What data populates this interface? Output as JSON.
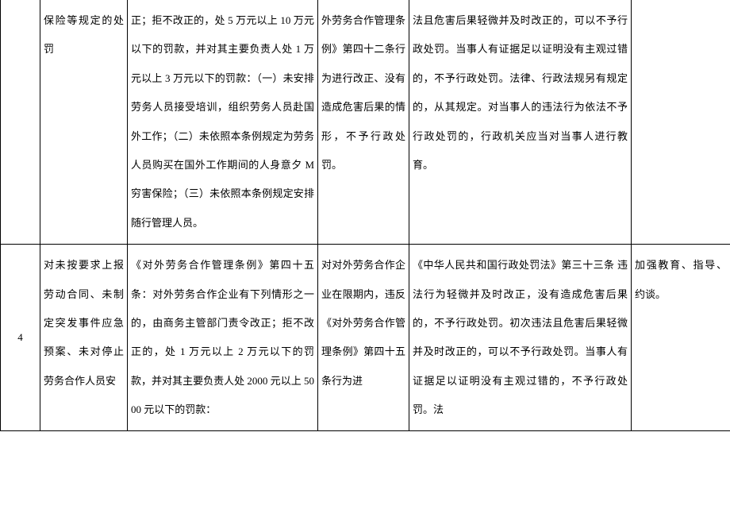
{
  "row1": {
    "c1": "",
    "c2": "保险等规定的处罚",
    "c3": "正；拒不改正的，处 5 万元以上 10 万元以下的罚款，并对其主要负责人处 1 万元以上 3 万元以下的罚款：（一）未安排劳务人员接受培训，组织劳务人员赴国外工作；（二）未依照本条例规定为劳务人员购买在国外工作期间的人身意夕 M 穷害保险；（三）未依照本条例规定安排随行管理人员。",
    "c4": "外劳务合作管理条例》第四十二条行为进行改正、没有造成危害后果的情形，不予行政处罚。",
    "c5": "法且危害后果轻微并及时改正的，可以不予行政处罚。当事人有证据足以证明没有主观过错的，不予行政处罚。法律、行政法规另有规定的，从其规定。对当事人的违法行为依法不予行政处罚的，行政机关应当对当事人进行教育。",
    "c6": ""
  },
  "row2": {
    "c1": "4",
    "c2": "对未按要求上报劳动合同、未制定突发事件应急预案、未对停止劳务合作人员安",
    "c3": "《对外劳务合作管理条例》第四十五条：对外劳务合作企业有下列情形之一的，由商务主管部门责令改正；拒不改正的，处 1 万元以上 2 万元以下的罚款，并对其主要负责人处 2000 元以上 5000 元以下的罚款：",
    "c4": "对对外劳务合作企业在限期内，违反《对外劳务合作管理条例》第四十五条行为进",
    "c5": "《中华人民共和国行政处罚法》第三十三条 违法行为轻微并及时改正，没有造成危害后果的，不予行政处罚。初次违法且危害后果轻微并及时改正的，可以不予行政处罚。当事人有证据足以证明没有主观过错的，不予行政处罚。法",
    "c6": "加强教育、指导、约谈。"
  }
}
